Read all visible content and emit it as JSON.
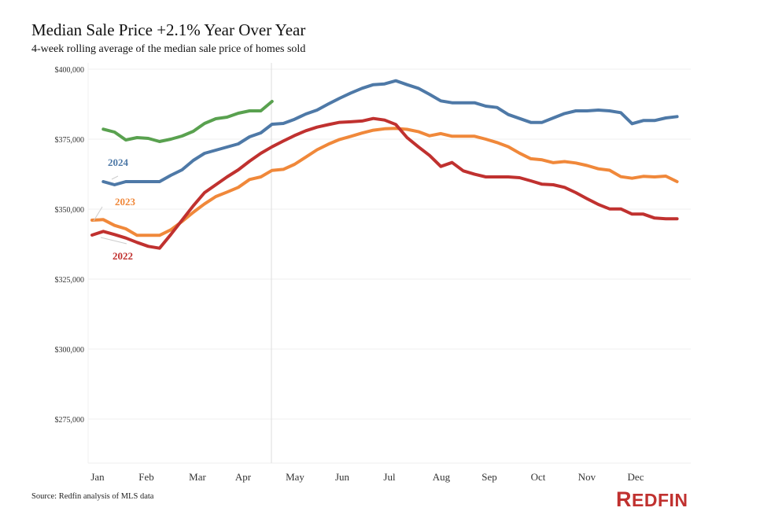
{
  "header": {
    "title": "Median Sale Price +2.1% Year Over Year",
    "subtitle": "4-week rolling average of the median sale price of homes sold"
  },
  "footer": {
    "source": "Source: Redfin analysis of MLS data",
    "logo": "REDFIN"
  },
  "chart_data": {
    "type": "line",
    "title": "Median Sale Price +2.1% Year Over Year",
    "subtitle": "4-week rolling average of the median sale price of homes sold",
    "xlabel": "",
    "ylabel": "",
    "x_tick_labels": [
      "Jan",
      "Feb",
      "Mar",
      "Apr",
      "May",
      "Jun",
      "Jul",
      "Aug",
      "Sep",
      "Oct",
      "Nov",
      "Dec"
    ],
    "y_tick_labels": [
      "$400,000",
      "$375,000",
      "$350,000",
      "$325,000",
      "$300,000",
      "$275,000"
    ],
    "y_ticks": [
      400000,
      375000,
      350000,
      325000,
      300000,
      275000
    ],
    "ylim": [
      270000,
      402000
    ],
    "x_unit": "week of year",
    "grid": true,
    "legend": "inline labels",
    "series": [
      {
        "name": "2022",
        "color": "#c0312f",
        "label_color": "#c0312f",
        "start_week": 0,
        "values": [
          340730,
          342050,
          340920,
          339690,
          338110,
          336710,
          336040,
          340920,
          346070,
          351210,
          355900,
          358710,
          361520,
          364040,
          367140,
          369940,
          372280,
          374330,
          376300,
          378000,
          379300,
          380200,
          381000,
          381200,
          381500,
          382390,
          381830,
          380250,
          375560,
          372280,
          369190,
          365260,
          366660,
          363680,
          362460,
          361520,
          361520,
          361520,
          361240,
          360110,
          358900,
          358710,
          357770,
          355900,
          353740,
          351690,
          350080,
          350080,
          348230,
          348230,
          346830,
          346550,
          346550
        ]
      },
      {
        "name": "2023",
        "color": "#f0883a",
        "label_color": "#f0883a",
        "start_week": 0,
        "values": [
          346070,
          346260,
          344190,
          342980,
          340640,
          340640,
          340640,
          342610,
          345590,
          348880,
          351880,
          354490,
          356090,
          357770,
          360590,
          361520,
          363850,
          364200,
          366000,
          368600,
          371200,
          373200,
          374900,
          376000,
          377200,
          378200,
          378700,
          378840,
          378500,
          377700,
          376200,
          377000,
          376040,
          376040,
          376040,
          375000,
          373800,
          372300,
          370000,
          368000,
          367610,
          366600,
          367000,
          366500,
          365600,
          364400,
          363900,
          361600,
          361040,
          361700,
          361520,
          361800,
          359830
        ]
      },
      {
        "name": "2024",
        "color": "#4e79a7",
        "label_color": "#4e79a7",
        "start_week": 1,
        "values": [
          359830,
          358710,
          359830,
          359830,
          359830,
          359830,
          362080,
          364040,
          367420,
          369940,
          371070,
          372190,
          373310,
          375840,
          377250,
          380340,
          380620,
          382110,
          383990,
          385390,
          387560,
          389610,
          391490,
          393170,
          394470,
          394750,
          395870,
          394470,
          393170,
          391010,
          388680,
          388010,
          388010,
          388010,
          386800,
          386330,
          383800,
          382390,
          380990,
          380990,
          382580,
          384170,
          385110,
          385110,
          385390,
          385110,
          384470,
          380530,
          381650,
          381650,
          382580,
          383060
        ]
      },
      {
        "name": "",
        "color": "#59a14f",
        "start_week": 1,
        "values": [
          378570,
          377530,
          374720,
          375560,
          375280,
          374160,
          375000,
          376120,
          377810,
          380620,
          382300,
          382870,
          384270,
          385110,
          385110,
          388480
        ]
      }
    ]
  }
}
